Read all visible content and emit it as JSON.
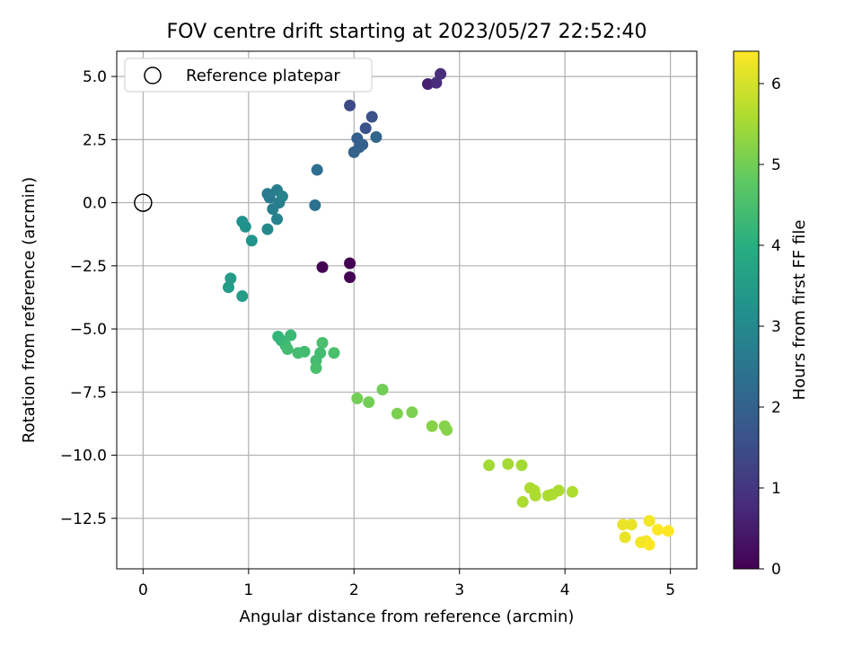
{
  "chart_data": {
    "type": "scatter",
    "title": "FOV centre drift starting at 2023/05/27 22:52:40",
    "xlabel": "Angular distance from reference (arcmin)",
    "ylabel": "Rotation from reference (arcmin)",
    "xlim": [
      -0.25,
      5.25
    ],
    "ylim": [
      -14.5,
      6.0
    ],
    "xticks": [
      0,
      1,
      2,
      3,
      4,
      5
    ],
    "yticks": [
      5.0,
      2.5,
      0.0,
      -2.5,
      -5.0,
      -7.5,
      -10.0,
      -12.5
    ],
    "xtick_labels": [
      "0",
      "1",
      "2",
      "3",
      "4",
      "5"
    ],
    "ytick_labels": [
      "5.0",
      "2.5",
      "0.0",
      "−2.5",
      "−5.0",
      "−7.5",
      "−10.0",
      "−12.5"
    ],
    "grid": true,
    "legend": {
      "position": "top-left",
      "entries": [
        {
          "label": "Reference platepar",
          "marker": "open-circle",
          "color": "#000000"
        }
      ]
    },
    "reference_point": {
      "x": 0.0,
      "y": 0.0
    },
    "colorbar": {
      "label": "Hours from first FF file",
      "range": [
        0,
        6.4
      ],
      "ticks": [
        0,
        1,
        2,
        3,
        4,
        5,
        6
      ],
      "tick_labels": [
        "0",
        "1",
        "2",
        "3",
        "4",
        "5",
        "6"
      ],
      "colormap": "viridis"
    },
    "series": [
      {
        "x": [
          1.7,
          1.96,
          1.96,
          2.7,
          2.78,
          2.82,
          1.96,
          2.11,
          2.17,
          2.03,
          2.05,
          2.08,
          2.0,
          2.21,
          1.65,
          1.63,
          1.18,
          1.2,
          1.23,
          1.27,
          1.29,
          1.32,
          1.27,
          1.18,
          0.94,
          0.97,
          1.03,
          0.83,
          0.81,
          0.94,
          1.28,
          1.31,
          1.35,
          1.4,
          1.37,
          1.47,
          1.53,
          1.64,
          1.68,
          1.7,
          1.64,
          1.81,
          2.03,
          2.14,
          2.27,
          2.41,
          2.55,
          2.74,
          2.86,
          2.88,
          3.28,
          3.46,
          3.59,
          3.6,
          3.67,
          3.72,
          3.71,
          3.84,
          3.88,
          3.94,
          4.07,
          4.55,
          4.57,
          4.63,
          4.72,
          4.77,
          4.8,
          4.8,
          4.88,
          4.98
        ],
        "y": [
          -2.55,
          -2.4,
          -2.95,
          4.7,
          4.75,
          5.1,
          3.85,
          2.95,
          3.4,
          2.55,
          2.2,
          2.3,
          2.0,
          2.6,
          1.3,
          -0.1,
          0.35,
          0.2,
          -0.25,
          0.5,
          0.0,
          0.25,
          -0.65,
          -1.05,
          -0.75,
          -0.95,
          -1.5,
          -3.0,
          -3.35,
          -3.7,
          -5.3,
          -5.45,
          -5.65,
          -5.25,
          -5.8,
          -5.95,
          -5.9,
          -6.25,
          -5.95,
          -5.55,
          -6.55,
          -5.95,
          -7.75,
          -7.9,
          -7.4,
          -8.35,
          -8.3,
          -8.85,
          -8.85,
          -9.0,
          -10.4,
          -10.35,
          -10.4,
          -11.85,
          -11.3,
          -11.6,
          -11.4,
          -11.6,
          -11.55,
          -11.4,
          -11.45,
          -12.75,
          -13.25,
          -12.75,
          -13.45,
          -13.4,
          -12.6,
          -13.55,
          -12.95,
          -13.0
        ],
        "hours": [
          0.0,
          0.0,
          0.0,
          0.6,
          0.8,
          0.8,
          1.4,
          1.6,
          1.6,
          1.9,
          1.9,
          2.0,
          2.0,
          2.1,
          2.3,
          2.4,
          2.6,
          2.6,
          2.7,
          2.7,
          2.7,
          2.8,
          2.8,
          3.0,
          3.2,
          3.2,
          3.3,
          3.5,
          3.5,
          3.5,
          4.2,
          4.2,
          4.3,
          4.3,
          4.4,
          4.4,
          4.4,
          4.4,
          4.4,
          4.5,
          4.5,
          4.5,
          5.0,
          5.0,
          5.0,
          5.1,
          5.1,
          5.2,
          5.2,
          5.2,
          5.5,
          5.5,
          5.5,
          5.6,
          5.6,
          5.6,
          5.6,
          5.6,
          5.6,
          5.6,
          5.6,
          6.2,
          6.2,
          6.2,
          6.3,
          6.3,
          6.3,
          6.4,
          6.4,
          6.4
        ]
      }
    ]
  }
}
